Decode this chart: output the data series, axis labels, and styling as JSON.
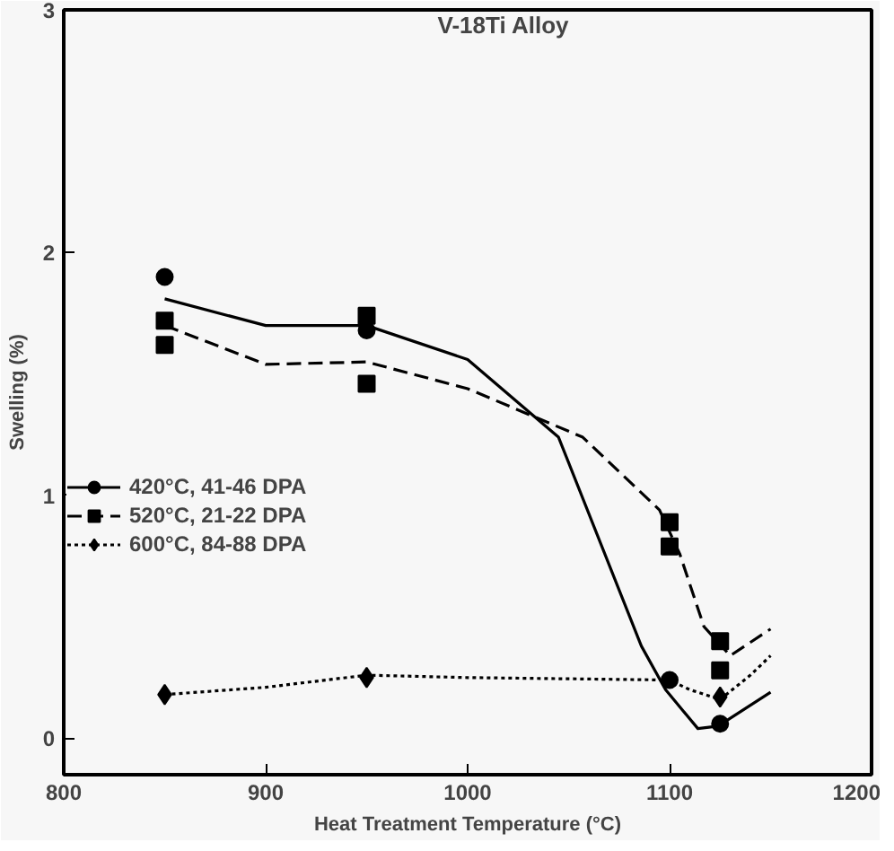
{
  "chart_data": {
    "type": "scatter",
    "title": "V-18Ti Alloy",
    "xlabel": "Heat Treatment Temperature (°C)",
    "ylabel": "Swelling (%)",
    "xlim": [
      800,
      1200
    ],
    "ylim": [
      -0.15,
      3
    ],
    "xticks": [
      800,
      900,
      1000,
      1100,
      1200
    ],
    "yticks": [
      0,
      1,
      2,
      3
    ],
    "grid": false,
    "legend": "center left",
    "series": [
      {
        "name": "420°C, 41-46 DPA",
        "marker": "circle",
        "color": "#000000",
        "x": [
          850,
          950,
          1100,
          1125
        ],
        "values": [
          1.9,
          1.68,
          0.24,
          0.06
        ]
      },
      {
        "type": "line",
        "line_style": "solid",
        "color": "#000000",
        "x": [
          850,
          900,
          950,
          1000,
          1045,
          1086,
          1098,
          1114,
          1124,
          1150
        ],
        "values": [
          1.81,
          1.7,
          1.7,
          1.56,
          1.24,
          0.38,
          0.2,
          0.04,
          0.05,
          0.19
        ]
      },
      {
        "name": "520°C, 21-22 DPA",
        "marker": "square",
        "color": "#000000",
        "x": [
          850,
          850,
          950,
          950,
          1100,
          1100,
          1125,
          1125
        ],
        "values": [
          1.72,
          1.62,
          1.74,
          1.46,
          0.89,
          0.79,
          0.4,
          0.28
        ]
      },
      {
        "type": "line",
        "line_style": "dashed",
        "color": "#000000",
        "x": [
          850,
          900,
          950,
          1000,
          1057,
          1095,
          1105,
          1117,
          1130,
          1150
        ],
        "values": [
          1.7,
          1.54,
          1.55,
          1.44,
          1.24,
          0.94,
          0.76,
          0.46,
          0.34,
          0.45
        ]
      },
      {
        "name": "600°C, 84-88 DPA",
        "marker": "diamond",
        "color": "#000000",
        "x": [
          850,
          950,
          1100,
          1125
        ],
        "values": [
          0.18,
          0.25,
          null,
          0.17
        ]
      },
      {
        "type": "line",
        "line_style": "dotted",
        "color": "#000000",
        "x": [
          850,
          900,
          950,
          1000,
          1100,
          1110,
          1125,
          1140,
          1150
        ],
        "values": [
          0.18,
          0.21,
          0.26,
          0.25,
          0.24,
          0.2,
          0.16,
          0.26,
          0.34
        ]
      }
    ]
  }
}
